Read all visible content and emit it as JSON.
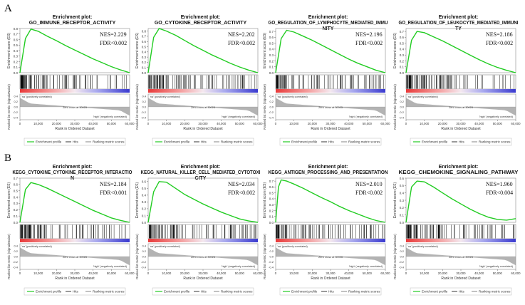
{
  "panels": [
    {
      "letter": "A"
    },
    {
      "letter": "B"
    }
  ],
  "common": {
    "title_prefix": "Enrichment plot:",
    "y_label": "Enrichment score (ES)",
    "y_label_rank": "Ranked list metric (Signal2Noise)",
    "x_label": "Rank in Ordered Dataset",
    "pos_label": "'na' (positively correlated)",
    "neg_label": "'high' (negatively correlated)",
    "zero_cross": "Zero cross at 30023",
    "legend": [
      "Enrichment profile",
      "Hits",
      "Ranking metric scores"
    ],
    "colors": {
      "curve": "#22cc22",
      "hits": "#000000",
      "pos": "#e83a3a",
      "neg": "#3a3acf",
      "metric": "#9a9a9a"
    }
  },
  "chart_data": [
    {
      "type": "line",
      "panel": "A",
      "title_lines": [
        "GO_IMMUNE_RECEPTOR_ACTIVITY"
      ],
      "nes_label": "NES=2.229",
      "fdr_label": "FDR<0.002",
      "x": [
        0,
        3000,
        6000,
        10000,
        15000,
        20000,
        25000,
        30000,
        35000,
        40000,
        45000,
        50000,
        55000,
        60000
      ],
      "y": [
        0,
        0.62,
        0.79,
        0.75,
        0.66,
        0.58,
        0.49,
        0.41,
        0.33,
        0.25,
        0.18,
        0.11,
        0.05,
        0
      ],
      "ylim": [
        0,
        0.8
      ],
      "yticks": [
        "0.8",
        "0.7",
        "0.6",
        "0.5",
        "0.4",
        "0.3",
        "0.2",
        "0.1",
        "0.0"
      ],
      "xlim": [
        0,
        60000
      ],
      "xticks": [
        "0",
        "10,000",
        "20,000",
        "30,000",
        "40,000",
        "50,000",
        "60,000"
      ],
      "metric_ticks": [
        "0.4",
        "0.2",
        "0.0",
        "-0.2",
        "-0.4"
      ]
    },
    {
      "type": "line",
      "panel": "A",
      "title_lines": [
        "GO_CYTOKINE_RECEPTOR_ACTIVITY"
      ],
      "nes_label": "NES=2.202",
      "fdr_label": "FDR<0.002",
      "x": [
        0,
        3000,
        6000,
        10000,
        15000,
        20000,
        25000,
        30000,
        35000,
        40000,
        45000,
        50000,
        55000,
        60000
      ],
      "y": [
        0,
        0.68,
        0.85,
        0.8,
        0.72,
        0.62,
        0.52,
        0.43,
        0.34,
        0.26,
        0.18,
        0.11,
        0.05,
        0
      ],
      "ylim": [
        0,
        0.85
      ],
      "yticks": [
        "0.8",
        "0.7",
        "0.6",
        "0.5",
        "0.4",
        "0.3",
        "0.2",
        "0.1",
        "0.0"
      ],
      "xlim": [
        0,
        60000
      ],
      "xticks": [
        "0",
        "10,000",
        "20,000",
        "30,000",
        "40,000",
        "50,000",
        "60,000"
      ],
      "metric_ticks": [
        "0.4",
        "0.2",
        "0.0",
        "-0.2",
        "-0.4"
      ]
    },
    {
      "type": "line",
      "panel": "A",
      "title_lines": [
        "GO_REGULATION_OF_LYMPHOCYTE_MEDIATED_IMMU",
        "NITY"
      ],
      "nes_label": "NES=2.196",
      "fdr_label": "FDR<0.002",
      "x": [
        0,
        3000,
        6000,
        10000,
        15000,
        20000,
        25000,
        30000,
        35000,
        40000,
        45000,
        50000,
        55000,
        60000
      ],
      "y": [
        0,
        0.58,
        0.72,
        0.69,
        0.62,
        0.55,
        0.47,
        0.39,
        0.31,
        0.23,
        0.16,
        0.1,
        0.04,
        0
      ],
      "ylim": [
        0,
        0.75
      ],
      "yticks": [
        "0.7",
        "0.6",
        "0.5",
        "0.4",
        "0.3",
        "0.2",
        "0.1",
        "0.0"
      ],
      "xlim": [
        0,
        60000
      ],
      "xticks": [
        "0",
        "10,000",
        "20,000",
        "30,000",
        "40,000",
        "50,000",
        "60,000"
      ],
      "metric_ticks": [
        "0.4",
        "0.2",
        "0.0",
        "-0.2",
        "-0.4"
      ]
    },
    {
      "type": "line",
      "panel": "A",
      "title_lines": [
        "GO_REGULATION_OF_LEUKOCYTE_MEDIATED_IMMUNI",
        "TY"
      ],
      "nes_label": "NES=2.186",
      "fdr_label": "FDR<0.002",
      "x": [
        0,
        3000,
        6000,
        10000,
        15000,
        20000,
        25000,
        30000,
        35000,
        40000,
        45000,
        50000,
        55000,
        60000
      ],
      "y": [
        0,
        0.55,
        0.7,
        0.68,
        0.61,
        0.54,
        0.46,
        0.38,
        0.3,
        0.22,
        0.15,
        0.09,
        0.04,
        0
      ],
      "ylim": [
        0,
        0.75
      ],
      "yticks": [
        "0.7",
        "0.6",
        "0.5",
        "0.4",
        "0.3",
        "0.2",
        "0.1",
        "0.0"
      ],
      "xlim": [
        0,
        60000
      ],
      "xticks": [
        "0",
        "10,000",
        "20,000",
        "30,000",
        "40,000",
        "50,000",
        "60,000"
      ],
      "metric_ticks": [
        "0.4",
        "0.2",
        "0.0",
        "-0.2",
        "-0.4"
      ]
    },
    {
      "type": "line",
      "panel": "B",
      "title_lines": [
        "KEGG_CYTOKINE_CYTOKINE_RECEPTOR_INTERACTIO",
        "N"
      ],
      "nes_label": "NES=2.184",
      "fdr_label": "FDR<0.001",
      "x": [
        0,
        3000,
        6000,
        10000,
        15000,
        20000,
        25000,
        30000,
        35000,
        40000,
        45000,
        50000,
        55000,
        60000
      ],
      "y": [
        0,
        0.52,
        0.63,
        0.6,
        0.54,
        0.47,
        0.4,
        0.33,
        0.26,
        0.19,
        0.13,
        0.07,
        0.03,
        0
      ],
      "ylim": [
        0,
        0.7
      ],
      "yticks": [
        "0.7",
        "0.6",
        "0.5",
        "0.4",
        "0.3",
        "0.2",
        "0.1",
        "0.0"
      ],
      "xlim": [
        0,
        60000
      ],
      "xticks": [
        "0",
        "10,000",
        "20,000",
        "30,000",
        "40,000",
        "50,000",
        "60,000"
      ],
      "metric_ticks": [
        "0.4",
        "0.2",
        "0.0",
        "-0.2",
        "-0.4"
      ]
    },
    {
      "type": "line",
      "panel": "B",
      "title_lines": [
        "KEGG_NATURAL_KILLER_CELL_MEDIATED_CYTOTOXI",
        "CITY"
      ],
      "nes_label": "NES=2.034",
      "fdr_label": "FDR<0.002",
      "x": [
        0,
        3000,
        6000,
        10000,
        15000,
        20000,
        25000,
        30000,
        35000,
        40000,
        45000,
        50000,
        55000,
        60000
      ],
      "y": [
        0,
        0.45,
        0.6,
        0.59,
        0.5,
        0.41,
        0.34,
        0.27,
        0.21,
        0.15,
        0.1,
        0.05,
        0.02,
        0
      ],
      "ylim": [
        0,
        0.65
      ],
      "yticks": [
        "0.6",
        "0.5",
        "0.4",
        "0.3",
        "0.2",
        "0.1",
        "0.0"
      ],
      "xlim": [
        0,
        60000
      ],
      "xticks": [
        "0",
        "10,000",
        "20,000",
        "30,000",
        "40,000",
        "50,000",
        "60,000"
      ],
      "metric_ticks": [
        "0.4",
        "0.2",
        "0.0",
        "-0.2",
        "-0.4"
      ]
    },
    {
      "type": "line",
      "panel": "B",
      "title_lines": [
        "KEGG_ANTIGEN_PROCESSING_AND_PRESENTATION"
      ],
      "nes_label": "NES=2.010",
      "fdr_label": "FDR<0.002",
      "x": [
        0,
        1500,
        3000,
        6000,
        10000,
        15000,
        20000,
        25000,
        30000,
        35000,
        40000,
        45000,
        50000,
        55000,
        60000
      ],
      "y": [
        0,
        0.6,
        0.72,
        0.7,
        0.65,
        0.58,
        0.5,
        0.42,
        0.35,
        0.27,
        0.2,
        0.14,
        0.08,
        0.03,
        0
      ],
      "ylim": [
        0,
        0.75
      ],
      "yticks": [
        "0.7",
        "0.6",
        "0.5",
        "0.4",
        "0.3",
        "0.2",
        "0.1",
        "0.0"
      ],
      "xlim": [
        0,
        60000
      ],
      "xticks": [
        "0",
        "10,000",
        "20,000",
        "30,000",
        "40,000",
        "50,000",
        "60,000"
      ],
      "metric_ticks": [
        "0.4",
        "0.2",
        "0.0",
        "-0.2",
        "-0.4"
      ]
    },
    {
      "type": "line",
      "panel": "B",
      "title_lines": [
        "KEGG_CHEMOKINE_SIGNALING_PATHWAY"
      ],
      "nes_label": "NES=1.960",
      "fdr_label": "FDR<0.004",
      "x": [
        0,
        3000,
        6000,
        10000,
        15000,
        20000,
        25000,
        30000,
        35000,
        40000,
        45000,
        50000,
        55000,
        60000
      ],
      "y": [
        0,
        0.48,
        0.56,
        0.55,
        0.48,
        0.4,
        0.32,
        0.25,
        0.18,
        0.12,
        0.07,
        0.04,
        0.03,
        0.05
      ],
      "ylim": [
        0,
        0.6
      ],
      "yticks": [
        "0.6",
        "0.5",
        "0.4",
        "0.3",
        "0.2",
        "0.1",
        "0.0"
      ],
      "xlim": [
        0,
        60000
      ],
      "xticks": [
        "0",
        "10,000",
        "20,000",
        "30,000",
        "40,000",
        "50,000",
        "60,000"
      ],
      "metric_ticks": [
        "0.4",
        "0.2",
        "0.0",
        "-0.2",
        "-0.4"
      ]
    }
  ]
}
